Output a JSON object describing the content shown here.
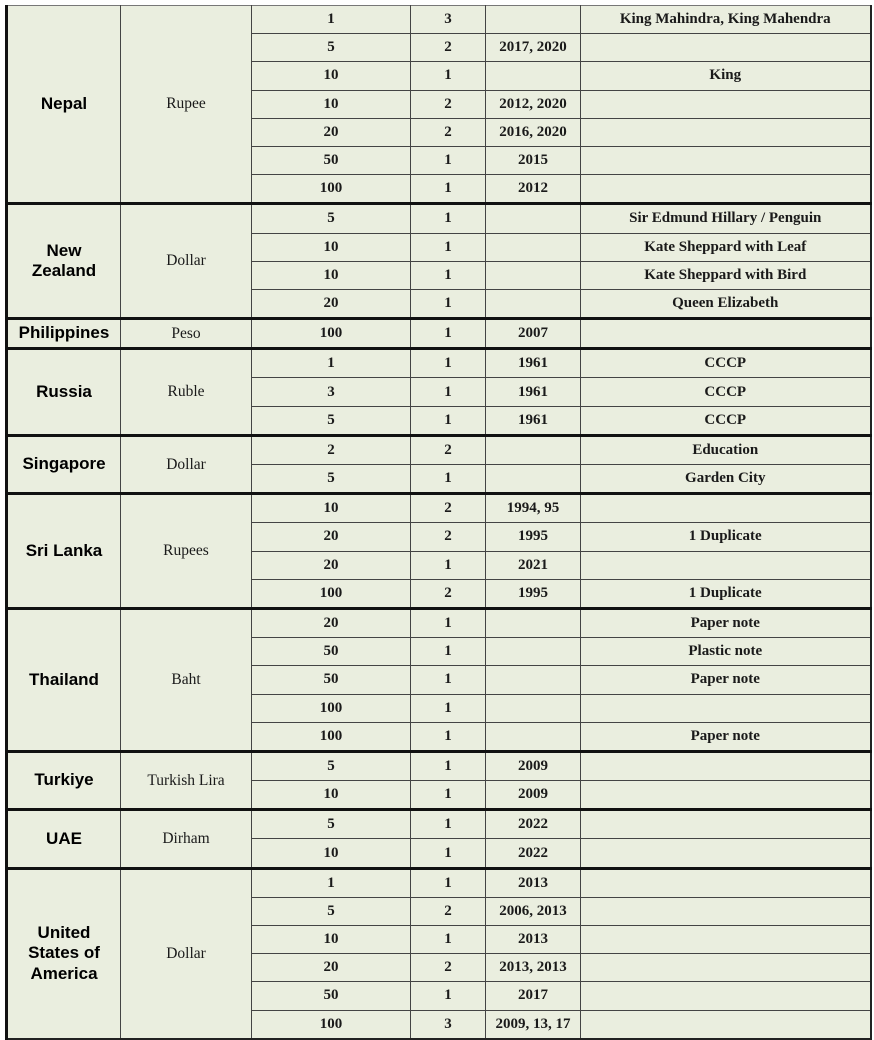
{
  "groups": [
    {
      "country": "Nepal",
      "currency": "Rupee",
      "rows": [
        [
          "1",
          "3",
          "",
          "King Mahindra, King Mahendra"
        ],
        [
          "5",
          "2",
          "2017, 2020",
          ""
        ],
        [
          "10",
          "1",
          "",
          "King"
        ],
        [
          "10",
          "2",
          "2012, 2020",
          ""
        ],
        [
          "20",
          "2",
          "2016, 2020",
          ""
        ],
        [
          "50",
          "1",
          "2015",
          ""
        ],
        [
          "100",
          "1",
          "2012",
          ""
        ]
      ]
    },
    {
      "country": "New Zealand",
      "currency": "Dollar",
      "rows": [
        [
          "5",
          "1",
          "",
          "Sir Edmund Hillary / Penguin"
        ],
        [
          "10",
          "1",
          "",
          "Kate Sheppard with Leaf"
        ],
        [
          "10",
          "1",
          "",
          "Kate Sheppard with Bird"
        ],
        [
          "20",
          "1",
          "",
          "Queen Elizabeth"
        ]
      ]
    },
    {
      "country": "Philippines",
      "currency": "Peso",
      "rows": [
        [
          "100",
          "1",
          "2007",
          ""
        ]
      ]
    },
    {
      "country": "Russia",
      "currency": "Ruble",
      "rows": [
        [
          "1",
          "1",
          "1961",
          "CCCP"
        ],
        [
          "3",
          "1",
          "1961",
          "CCCP"
        ],
        [
          "5",
          "1",
          "1961",
          "CCCP"
        ]
      ]
    },
    {
      "country": "Singapore",
      "currency": "Dollar",
      "rows": [
        [
          "2",
          "2",
          "",
          "Education"
        ],
        [
          "5",
          "1",
          "",
          "Garden City"
        ]
      ]
    },
    {
      "country": "Sri Lanka",
      "currency": "Rupees",
      "rows": [
        [
          "10",
          "2",
          "1994, 95",
          ""
        ],
        [
          "20",
          "2",
          "1995",
          "1 Duplicate"
        ],
        [
          "20",
          "1",
          "2021",
          ""
        ],
        [
          "100",
          "2",
          "1995",
          "1 Duplicate"
        ]
      ]
    },
    {
      "country": "Thailand",
      "currency": "Baht",
      "rows": [
        [
          "20",
          "1",
          "",
          "Paper note"
        ],
        [
          "50",
          "1",
          "",
          "Plastic note"
        ],
        [
          "50",
          "1",
          "",
          "Paper note"
        ],
        [
          "100",
          "1",
          "",
          ""
        ],
        [
          "100",
          "1",
          "",
          "Paper note"
        ]
      ]
    },
    {
      "country": "Turkiye",
      "currency": "Turkish Lira",
      "rows": [
        [
          "5",
          "1",
          "2009",
          ""
        ],
        [
          "10",
          "1",
          "2009",
          ""
        ]
      ]
    },
    {
      "country": "UAE",
      "currency": "Dirham",
      "rows": [
        [
          "5",
          "1",
          "2022",
          ""
        ],
        [
          "10",
          "1",
          "2022",
          ""
        ]
      ]
    },
    {
      "country": "United States of America",
      "currency": "Dollar",
      "rows": [
        [
          "1",
          "1",
          "2013",
          ""
        ],
        [
          "5",
          "2",
          "2006, 2013",
          ""
        ],
        [
          "10",
          "1",
          "2013",
          ""
        ],
        [
          "20",
          "2",
          "2013, 2013",
          ""
        ],
        [
          "50",
          "1",
          "2017",
          ""
        ],
        [
          "100",
          "3",
          "2009, 13, 17",
          ""
        ]
      ]
    }
  ]
}
